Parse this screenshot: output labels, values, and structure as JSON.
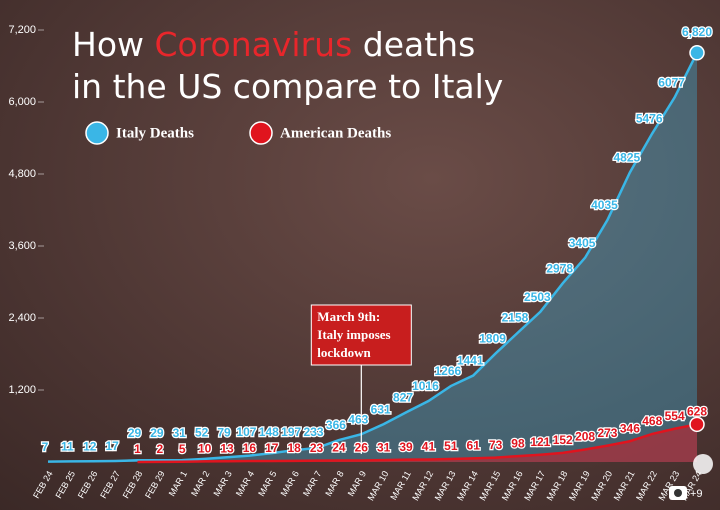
{
  "chart_data": {
    "type": "area-line",
    "title": [
      [
        {
          "text": "How ",
          "color": "#ffffff"
        },
        {
          "text": "Coronavirus",
          "color": "#e8262b"
        },
        {
          "text": " deaths",
          "color": "#ffffff"
        }
      ],
      [
        {
          "text": "in the US compare to Italy",
          "color": "#ffffff"
        }
      ]
    ],
    "categories": [
      "FEB 24",
      "FEB 25",
      "FEB 26",
      "FEB 27",
      "FEB 28",
      "FEB 29",
      "MAR 1",
      "MAR 2",
      "MAR 3",
      "MAR 4",
      "MAR 5",
      "MAR 6",
      "MAR 7",
      "MAR 8",
      "MAR 9",
      "MAR 10",
      "MAR 11",
      "MAR 12",
      "MAR 13",
      "MAR 14",
      "MAR 15",
      "MAR 16",
      "MAR 17",
      "MAR 18",
      "MAR 19",
      "MAR 20",
      "MAR 21",
      "MAR 22",
      "MAR 23",
      "MAR 24"
    ],
    "series": [
      {
        "name": "Italy Deaths",
        "color": "#3ab6e6",
        "values": [
          7,
          11,
          12,
          17,
          29,
          29,
          31,
          52,
          79,
          107,
          148,
          197,
          233,
          366,
          463,
          631,
          827,
          1016,
          1266,
          1441,
          1809,
          2158,
          2503,
          2978,
          3405,
          4035,
          4825,
          5476,
          6077,
          6820
        ],
        "value_labels": [
          "7",
          "11",
          "12",
          "17",
          "29",
          "29",
          "31",
          "52",
          "79",
          "107",
          "148",
          "197",
          "233",
          "366",
          "463",
          "631",
          "827",
          "1016",
          "1266",
          "1441",
          "1809",
          "2158",
          "2503",
          "2978",
          "3405",
          "4035",
          "4825",
          "5476",
          "6077",
          "6,820"
        ]
      },
      {
        "name": "American Deaths",
        "color": "#e0141e",
        "values": [
          null,
          null,
          null,
          null,
          1,
          2,
          5,
          10,
          13,
          16,
          17,
          18,
          23,
          24,
          26,
          31,
          39,
          41,
          51,
          61,
          73,
          98,
          121,
          152,
          208,
          273,
          346,
          468,
          554,
          628
        ]
      }
    ],
    "ylim": [
      0,
      7200
    ],
    "yticks": [
      {
        "value": 1200,
        "label": "1,200"
      },
      {
        "value": 2400,
        "label": "2,400"
      },
      {
        "value": 3600,
        "label": "3,600"
      },
      {
        "value": 4800,
        "label": "4,800"
      },
      {
        "value": 6000,
        "label": "6,000"
      },
      {
        "value": 7200,
        "label": "7,200"
      }
    ],
    "annotation": {
      "category_index": 14,
      "lines": [
        "March 9th:",
        "Italy imposes",
        "lockdown"
      ]
    },
    "gallery_count": "+9"
  }
}
